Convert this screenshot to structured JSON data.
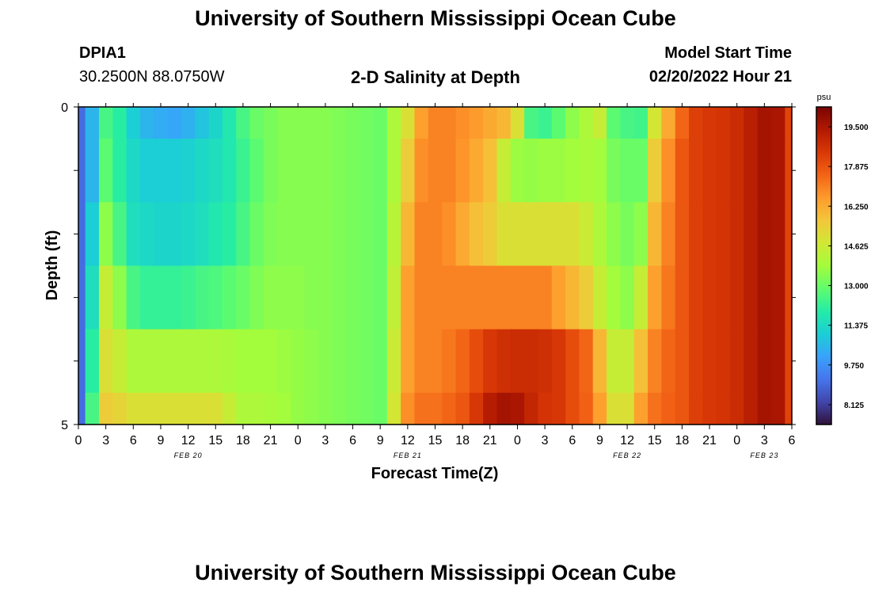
{
  "header": {
    "title": "University of Southern Mississippi Ocean Cube",
    "station_id": "DPIA1",
    "station_coords": "30.2500N  88.0750W",
    "plot_title": "2-D Salinity at Depth",
    "model_start_label": "Model Start Time",
    "model_start_value": "02/20/2022 Hour 21"
  },
  "footer": {
    "title": "University of Southern Mississippi Ocean Cube"
  },
  "chart_data": {
    "type": "heatmap",
    "title": "2-D Salinity at Depth",
    "xlabel": "Forecast Time(Z)",
    "ylabel": "Depth (ft)",
    "ylim": [
      0,
      5
    ],
    "y_tick_labels": [
      "0",
      "5"
    ],
    "x_tick_labels": [
      "0",
      "3",
      "6",
      "9",
      "12",
      "15",
      "18",
      "21",
      "0",
      "3",
      "6",
      "9",
      "12",
      "15",
      "18",
      "21",
      "0",
      "3",
      "6",
      "9",
      "12",
      "15",
      "18",
      "21",
      "0",
      "3",
      "6"
    ],
    "date_labels": [
      {
        "text": "FEB 20",
        "tick_index": 4
      },
      {
        "text": "FEB 21",
        "tick_index": 12
      },
      {
        "text": "FEB 22",
        "tick_index": 20
      },
      {
        "text": "FEB 23",
        "tick_index": 25
      }
    ],
    "colorbar": {
      "unit": "psu",
      "min": 7.3125,
      "max": 20.3125,
      "tick_labels": [
        "19.500",
        "17.875",
        "16.250",
        "14.625",
        "13.000",
        "11.375",
        "9.750",
        "8.125"
      ],
      "tick_values": [
        19.5,
        17.875,
        16.25,
        14.625,
        13.0,
        11.375,
        9.75,
        8.125
      ],
      "colors": [
        "#30123b",
        "#4145ab",
        "#4675ed",
        "#39a2fc",
        "#1bcfd4",
        "#24eca6",
        "#61fc6c",
        "#a4fc3b",
        "#d1e834",
        "#f3c63a",
        "#fe9b2d",
        "#f36315",
        "#d93806",
        "#b11901",
        "#7a0403"
      ]
    },
    "hours": [
      0,
      1.5,
      3,
      4.5,
      6,
      7.5,
      9,
      10.5,
      12,
      13.5,
      15,
      16.5,
      18,
      19.5,
      21,
      22.5,
      24,
      25.5,
      27,
      28.5,
      30,
      31.5,
      33,
      34.5,
      36,
      37.5,
      39,
      40.5,
      42,
      43.5,
      45,
      46.5,
      48,
      49.5,
      51,
      52.5,
      54,
      55.5,
      57,
      58.5,
      60,
      61.5,
      63,
      64.5,
      66,
      67.5,
      69,
      70.5,
      72,
      73.5,
      75,
      76.5,
      78
    ],
    "depth_bands_ft": [
      "0.0-0.5",
      "0.5-1.5",
      "1.5-2.5",
      "2.5-3.5",
      "3.5-4.5",
      "4.5-5.0"
    ],
    "salinity": [
      [
        9.0,
        10.5,
        12.5,
        12.0,
        11.0,
        10.5,
        10.3,
        10.2,
        10.4,
        10.8,
        11.2,
        11.8,
        12.5,
        13.0,
        13.2,
        13.4,
        13.4,
        13.4,
        13.4,
        13.3,
        13.2,
        13.1,
        13.0,
        14.0,
        15.0,
        16.5,
        17.0,
        17.0,
        16.8,
        16.6,
        16.3,
        16.0,
        15.0,
        12.5,
        12.3,
        12.8,
        13.5,
        14.0,
        14.5,
        12.8,
        12.5,
        12.4,
        14.8,
        16.3,
        17.5,
        18.3,
        18.5,
        18.6,
        18.8,
        19.2,
        19.6,
        19.5,
        18.2
      ],
      [
        9.0,
        10.5,
        12.8,
        12.0,
        11.3,
        11.0,
        11.0,
        11.0,
        11.1,
        11.3,
        11.5,
        11.8,
        12.3,
        12.8,
        13.2,
        13.4,
        13.4,
        13.4,
        13.4,
        13.3,
        13.2,
        13.1,
        13.0,
        14.0,
        15.5,
        16.8,
        17.0,
        17.0,
        16.7,
        16.3,
        15.8,
        14.5,
        13.7,
        13.6,
        13.7,
        13.7,
        13.8,
        13.9,
        13.8,
        13.2,
        13.0,
        13.0,
        15.5,
        16.8,
        17.8,
        18.3,
        18.5,
        18.6,
        18.8,
        19.2,
        19.6,
        19.5,
        18.2
      ],
      [
        9.0,
        11.0,
        13.5,
        12.5,
        11.5,
        11.3,
        11.2,
        11.2,
        11.3,
        11.5,
        11.8,
        12.0,
        12.5,
        13.0,
        13.3,
        13.4,
        13.4,
        13.4,
        13.4,
        13.3,
        13.2,
        13.1,
        13.0,
        14.2,
        16.0,
        17.0,
        17.0,
        16.8,
        16.3,
        15.8,
        15.5,
        15.0,
        15.0,
        15.0,
        15.0,
        15.0,
        15.0,
        14.6,
        14.0,
        13.5,
        13.2,
        13.5,
        16.0,
        17.0,
        17.8,
        18.3,
        18.5,
        18.6,
        18.8,
        19.2,
        19.6,
        19.5,
        18.2
      ],
      [
        9.0,
        11.5,
        14.5,
        13.5,
        12.5,
        12.2,
        12.2,
        12.2,
        12.3,
        12.5,
        12.6,
        12.8,
        13.0,
        13.3,
        13.5,
        13.5,
        13.5,
        13.4,
        13.4,
        13.3,
        13.2,
        13.1,
        13.0,
        14.4,
        16.5,
        17.0,
        17.0,
        17.0,
        17.0,
        17.0,
        17.0,
        17.0,
        17.0,
        17.0,
        17.0,
        16.5,
        16.0,
        15.5,
        14.5,
        13.8,
        13.5,
        14.5,
        16.5,
        17.2,
        17.8,
        18.3,
        18.5,
        18.6,
        18.8,
        19.2,
        19.6,
        19.5,
        18.2
      ],
      [
        9.0,
        12.0,
        15.0,
        14.5,
        14.0,
        14.0,
        14.0,
        14.0,
        14.0,
        14.0,
        14.0,
        13.9,
        13.8,
        13.8,
        13.8,
        13.7,
        13.6,
        13.5,
        13.4,
        13.3,
        13.2,
        13.1,
        13.0,
        14.6,
        16.5,
        17.0,
        17.0,
        17.2,
        17.5,
        18.0,
        18.5,
        18.7,
        18.8,
        18.8,
        18.7,
        18.5,
        18.0,
        17.5,
        16.0,
        14.5,
        14.5,
        15.8,
        17.0,
        17.5,
        17.8,
        18.3,
        18.5,
        18.6,
        18.8,
        19.2,
        19.6,
        19.5,
        18.2
      ],
      [
        9.0,
        12.5,
        15.5,
        15.3,
        15.0,
        15.0,
        15.0,
        15.0,
        15.0,
        15.0,
        15.0,
        14.5,
        14.0,
        14.0,
        13.9,
        13.8,
        13.6,
        13.5,
        13.4,
        13.3,
        13.2,
        13.1,
        13.0,
        14.8,
        16.8,
        17.3,
        17.3,
        17.5,
        17.8,
        18.5,
        19.3,
        19.6,
        19.5,
        19.0,
        18.6,
        18.5,
        18.0,
        17.6,
        16.5,
        15.0,
        15.0,
        16.5,
        17.3,
        17.6,
        17.8,
        18.3,
        18.5,
        18.6,
        18.8,
        19.2,
        19.6,
        19.5,
        18.2
      ]
    ]
  }
}
